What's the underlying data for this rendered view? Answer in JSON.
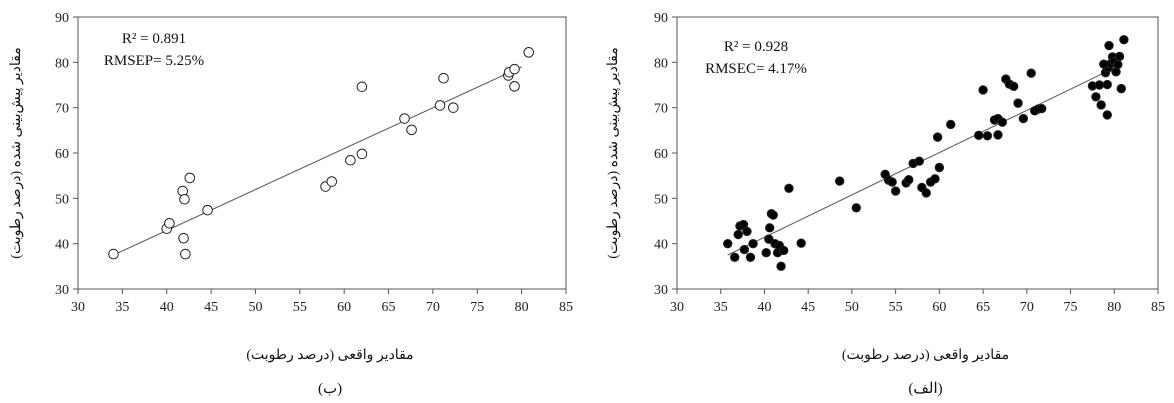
{
  "chart_data": [
    {
      "type": "scatter",
      "panel_label": "(ب)",
      "xlabel": "مقادیر واقعی (درصد رطوبت)",
      "ylabel": "مقادیر پیش‌بینی شده (درصد رطوبت)",
      "xlim": [
        30,
        85
      ],
      "ylim": [
        30,
        90
      ],
      "xticks": [
        "30",
        "35",
        "40",
        "45",
        "50",
        "55",
        "60",
        "65",
        "70",
        "75",
        "80",
        "85"
      ],
      "yticks": [
        "30",
        "40",
        "50",
        "60",
        "70",
        "80",
        "90"
      ],
      "annotations": [
        "R² = 0.891",
        "RMSEP= 5.25%"
      ],
      "marker": "open-circle",
      "grid": false,
      "points": [
        [
          34.0,
          37.7
        ],
        [
          40.0,
          43.3
        ],
        [
          40.3,
          44.5
        ],
        [
          41.8,
          51.6
        ],
        [
          42.0,
          49.8
        ],
        [
          41.9,
          41.2
        ],
        [
          42.1,
          37.7
        ],
        [
          42.6,
          54.5
        ],
        [
          44.6,
          47.4
        ],
        [
          57.9,
          52.6
        ],
        [
          58.6,
          53.7
        ],
        [
          60.7,
          58.4
        ],
        [
          62.0,
          59.8
        ],
        [
          62.0,
          74.6
        ],
        [
          66.8,
          67.6
        ],
        [
          67.6,
          65.1
        ],
        [
          70.8,
          70.5
        ],
        [
          71.2,
          76.5
        ],
        [
          72.3,
          70.0
        ],
        [
          78.5,
          77.1
        ],
        [
          78.6,
          77.8
        ],
        [
          79.2,
          78.5
        ],
        [
          79.2,
          74.7
        ],
        [
          80.8,
          82.2
        ]
      ],
      "trendline": {
        "x": [
          34.0,
          80.0
        ],
        "y": [
          37.5,
          79.0
        ]
      }
    },
    {
      "type": "scatter",
      "panel_label": "(الف)",
      "xlabel": "مقادیر واقعی (درصد رطوبت)",
      "ylabel": "مقادیر پیش‌بینی شده (درصد رطوبت)",
      "xlim": [
        30,
        85
      ],
      "ylim": [
        30,
        90
      ],
      "xticks": [
        "30",
        "35",
        "40",
        "45",
        "50",
        "55",
        "60",
        "65",
        "70",
        "75",
        "80",
        "85"
      ],
      "yticks": [
        "30",
        "40",
        "50",
        "60",
        "70",
        "80",
        "90"
      ],
      "annotations": [
        "R² = 0.928",
        "RMSEC= 4.17%"
      ],
      "marker": "filled-circle",
      "grid": false,
      "points": [
        [
          35.8,
          40.0
        ],
        [
          36.6,
          37.0
        ],
        [
          37.0,
          42.0
        ],
        [
          37.2,
          43.9
        ],
        [
          37.6,
          44.2
        ],
        [
          37.7,
          38.7
        ],
        [
          38.0,
          42.7
        ],
        [
          38.4,
          37.0
        ],
        [
          38.7,
          40.0
        ],
        [
          40.2,
          38.0
        ],
        [
          40.5,
          41.0
        ],
        [
          40.6,
          43.5
        ],
        [
          40.8,
          46.6
        ],
        [
          41.0,
          46.3
        ],
        [
          41.2,
          40.0
        ],
        [
          41.5,
          38.0
        ],
        [
          41.7,
          39.6
        ],
        [
          41.9,
          35.0
        ],
        [
          42.2,
          38.5
        ],
        [
          42.8,
          52.2
        ],
        [
          44.2,
          40.1
        ],
        [
          48.6,
          53.8
        ],
        [
          50.5,
          47.9
        ],
        [
          53.8,
          55.3
        ],
        [
          54.2,
          54.0
        ],
        [
          54.6,
          53.6
        ],
        [
          55.0,
          51.6
        ],
        [
          56.2,
          53.4
        ],
        [
          56.5,
          54.1
        ],
        [
          57.0,
          57.7
        ],
        [
          57.7,
          58.2
        ],
        [
          58.0,
          52.4
        ],
        [
          58.5,
          51.2
        ],
        [
          59.0,
          53.6
        ],
        [
          59.5,
          54.3
        ],
        [
          59.8,
          63.5
        ],
        [
          60.0,
          56.8
        ],
        [
          61.3,
          66.3
        ],
        [
          64.5,
          63.9
        ],
        [
          65.0,
          73.9
        ],
        [
          65.5,
          63.8
        ],
        [
          66.3,
          67.3
        ],
        [
          66.7,
          67.6
        ],
        [
          66.7,
          64.0
        ],
        [
          67.2,
          66.8
        ],
        [
          67.6,
          76.3
        ],
        [
          68.0,
          75.2
        ],
        [
          68.5,
          74.7
        ],
        [
          69.0,
          71.0
        ],
        [
          69.6,
          67.6
        ],
        [
          70.5,
          77.6
        ],
        [
          70.9,
          69.3
        ],
        [
          71.3,
          69.7
        ],
        [
          71.7,
          69.8
        ],
        [
          77.5,
          74.8
        ],
        [
          77.9,
          72.4
        ],
        [
          78.3,
          75.0
        ],
        [
          78.5,
          70.6
        ],
        [
          79.0,
          77.7
        ],
        [
          79.2,
          68.4
        ],
        [
          79.3,
          78.8
        ],
        [
          79.4,
          83.7
        ],
        [
          79.6,
          79.7
        ],
        [
          79.8,
          81.2
        ],
        [
          80.0,
          80.2
        ],
        [
          80.2,
          77.9
        ],
        [
          80.4,
          79.5
        ],
        [
          80.6,
          81.3
        ],
        [
          80.8,
          74.2
        ],
        [
          81.1,
          85.0
        ],
        [
          79.2,
          75.1
        ],
        [
          78.8,
          79.6
        ]
      ],
      "trendline": {
        "x": [
          35.8,
          80.8
        ],
        "y": [
          37.5,
          79.5
        ]
      }
    }
  ]
}
